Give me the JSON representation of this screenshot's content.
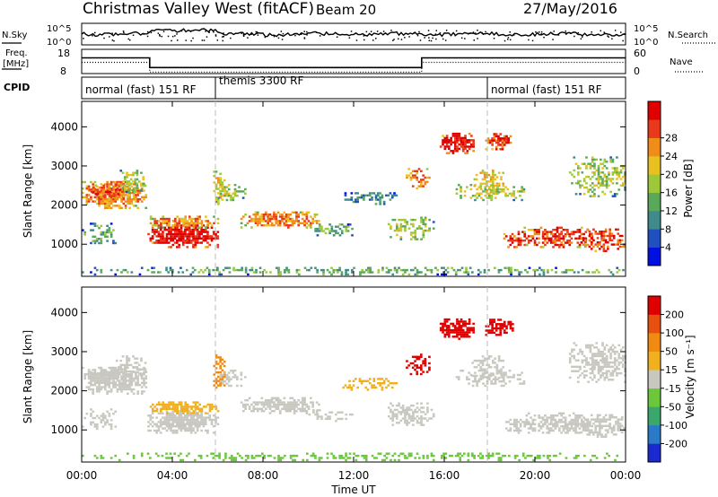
{
  "header": {
    "title": "Christmas Valley West (fitACF)",
    "beam": "Beam 20",
    "date": "27/May/2016"
  },
  "chart_data": [
    {
      "type": "line",
      "panel": "noise",
      "left_label": "N.Sky",
      "right_label": "N.Search",
      "left_ticks": [
        "10^5",
        "10^0"
      ],
      "right_ticks": [
        "10^5",
        "10^0"
      ]
    },
    {
      "type": "line",
      "panel": "freq-nave",
      "left_label_1": "Freq.",
      "left_label_2": "[MHz]",
      "right_label": "Nave",
      "left_ticks": [
        "18",
        "8"
      ],
      "right_ticks": [
        "60",
        "0"
      ],
      "freq_steps": [
        {
          "start": 0.0,
          "end": 3.0,
          "value": 14.5
        },
        {
          "start": 3.0,
          "end": 15.0,
          "value": 10.5
        },
        {
          "start": 15.0,
          "end": 24.0,
          "value": 14.5
        }
      ]
    },
    {
      "type": "table",
      "panel": "cpid",
      "label": "CPID",
      "segments": [
        {
          "start": 0.0,
          "end": 6.0,
          "name": "normal (fast) 151 RF"
        },
        {
          "start": 6.0,
          "end": 18.0,
          "name": "themis 3300 RF"
        },
        {
          "start": 18.0,
          "end": 24.0,
          "name": "normal (fast) 151 RF"
        }
      ]
    },
    {
      "type": "heatmap",
      "panel": "power",
      "ylabel": "Slant Range [km]",
      "yticks": [
        1000,
        2000,
        3000,
        4000
      ],
      "ylim": [
        180,
        4650
      ],
      "colorbar_label": "Power [dB]",
      "colorbar_ticks": [
        "4",
        "8",
        "12",
        "16",
        "20",
        "24",
        "28"
      ],
      "colors": [
        "#0010e0",
        "#2050c0",
        "#3f8a8a",
        "#5aa85a",
        "#9cc83a",
        "#e8c020",
        "#f08c1a",
        "#e83a1a",
        "#e00000"
      ]
    },
    {
      "type": "heatmap",
      "panel": "velocity",
      "ylabel": "Slant Range [km]",
      "yticks": [
        1000,
        2000,
        3000,
        4000
      ],
      "ylim": [
        180,
        4650
      ],
      "xlabel": "Time UT",
      "xticks": [
        "00:00",
        "04:00",
        "08:00",
        "12:00",
        "16:00",
        "20:00",
        "00:00"
      ],
      "xlim": [
        0,
        24
      ],
      "colorbar_label": "Velocity [m s⁻¹]",
      "colorbar_ticks": [
        "200",
        "100",
        "50",
        "15",
        "-15",
        "-50",
        "-100",
        "-200"
      ],
      "colors": [
        "#1a2ad0",
        "#2a7ac8",
        "#3aa86a",
        "#6ac83a",
        "#c8c8c0",
        "#f0b020",
        "#f08a10",
        "#e85010",
        "#e00000"
      ]
    }
  ]
}
